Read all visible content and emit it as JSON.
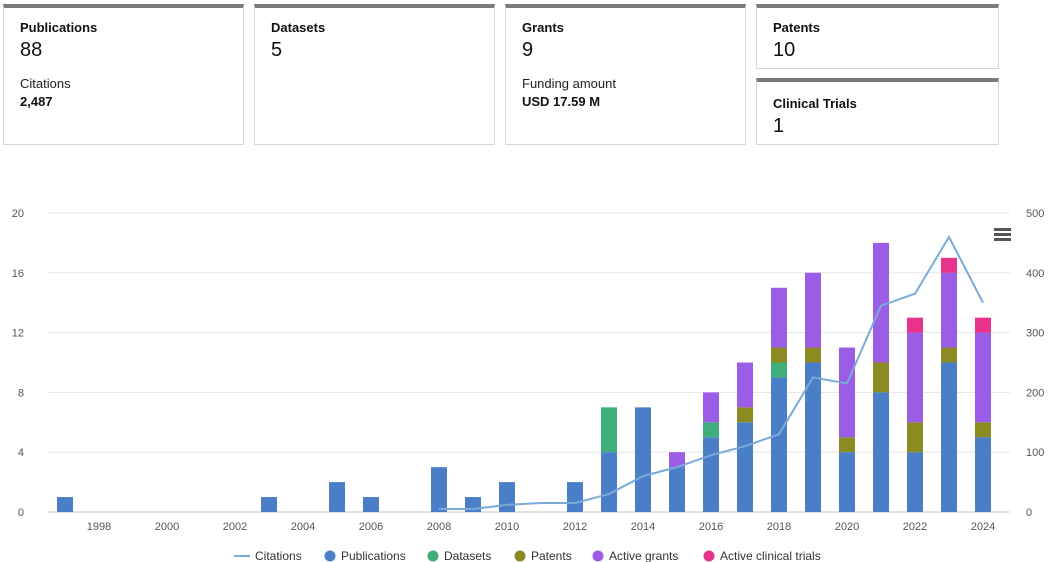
{
  "cards": {
    "publications": {
      "label": "Publications",
      "value": "88",
      "sub_label": "Citations",
      "sub_value": "2,487"
    },
    "datasets": {
      "label": "Datasets",
      "value": "5"
    },
    "grants": {
      "label": "Grants",
      "value": "9",
      "sub_label": "Funding amount",
      "sub_value": "USD 17.59 M"
    },
    "patents": {
      "label": "Patents",
      "value": "10"
    },
    "clinical_trials": {
      "label": "Clinical Trials",
      "value": "1"
    }
  },
  "menu_icon": "hamburger-menu-icon",
  "chart_data": {
    "type": "bar",
    "stacked": true,
    "categories": [
      1997,
      1998,
      1999,
      2000,
      2001,
      2002,
      2003,
      2004,
      2005,
      2006,
      2007,
      2008,
      2009,
      2010,
      2011,
      2012,
      2013,
      2014,
      2015,
      2016,
      2017,
      2018,
      2019,
      2020,
      2021,
      2022,
      2023,
      2024
    ],
    "x_tick_labels": [
      "1998",
      "2000",
      "2002",
      "2004",
      "2006",
      "2008",
      "2010",
      "2012",
      "2014",
      "2016",
      "2018",
      "2020",
      "2022",
      "2024"
    ],
    "y_left": {
      "ylim": [
        0,
        20
      ],
      "ticks": [
        0,
        4,
        8,
        12,
        16,
        20
      ]
    },
    "y_right": {
      "ylim": [
        0,
        500
      ],
      "ticks": [
        0,
        100,
        200,
        300,
        400,
        500
      ]
    },
    "series": [
      {
        "name": "Publications",
        "color": "#4a7fc8",
        "axis": "left",
        "values": [
          1,
          0,
          0,
          0,
          0,
          0,
          1,
          0,
          2,
          1,
          0,
          3,
          1,
          2,
          0,
          2,
          4,
          7,
          3,
          5,
          6,
          9,
          10,
          4,
          8,
          4,
          10,
          5
        ]
      },
      {
        "name": "Datasets",
        "color": "#3fae7a",
        "axis": "left",
        "values": [
          0,
          0,
          0,
          0,
          0,
          0,
          0,
          0,
          0,
          0,
          0,
          0,
          0,
          0,
          0,
          0,
          3,
          0,
          0,
          1,
          0,
          1,
          0,
          0,
          0,
          0,
          0,
          0
        ]
      },
      {
        "name": "Patents",
        "color": "#8c8a22",
        "axis": "left",
        "values": [
          0,
          0,
          0,
          0,
          0,
          0,
          0,
          0,
          0,
          0,
          0,
          0,
          0,
          0,
          0,
          0,
          0,
          0,
          0,
          0,
          1,
          1,
          1,
          1,
          2,
          2,
          1,
          1
        ]
      },
      {
        "name": "Active grants",
        "color": "#9b5de5",
        "axis": "left",
        "values": [
          0,
          0,
          0,
          0,
          0,
          0,
          0,
          0,
          0,
          0,
          0,
          0,
          0,
          0,
          0,
          0,
          0,
          0,
          1,
          2,
          3,
          4,
          5,
          6,
          8,
          6,
          5,
          6
        ]
      },
      {
        "name": "Active clinical trials",
        "color": "#e8338a",
        "axis": "left",
        "values": [
          0,
          0,
          0,
          0,
          0,
          0,
          0,
          0,
          0,
          0,
          0,
          0,
          0,
          0,
          0,
          0,
          0,
          0,
          0,
          0,
          0,
          0,
          0,
          0,
          0,
          1,
          1,
          1
        ]
      }
    ],
    "line_series": {
      "name": "Citations",
      "color": "#7aaad8",
      "axis": "right",
      "x": [
        2008,
        2009,
        2010,
        2011,
        2012,
        2013,
        2014,
        2015,
        2016,
        2017,
        2018,
        2019,
        2020,
        2021,
        2022,
        2023,
        2024
      ],
      "values": [
        5,
        5,
        12,
        15,
        15,
        30,
        60,
        75,
        95,
        110,
        130,
        225,
        215,
        345,
        365,
        460,
        350
      ]
    },
    "legend": [
      "Citations",
      "Publications",
      "Datasets",
      "Patents",
      "Active grants",
      "Active clinical trials"
    ],
    "legend_position": "bottom",
    "grid": true
  }
}
